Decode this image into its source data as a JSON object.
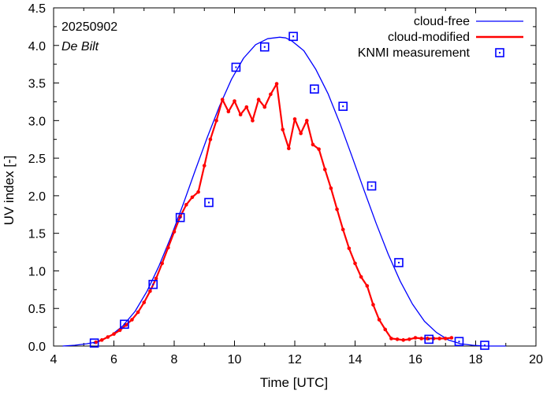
{
  "chart_data": {
    "type": "line",
    "annotations": {
      "date": "20250902",
      "station": "De Bilt"
    },
    "xlabel": "Time  [UTC]",
    "ylabel": "UV index  [-]",
    "xlim": [
      4,
      20
    ],
    "ylim": [
      0,
      4.5
    ],
    "xticks": [
      4,
      6,
      8,
      10,
      12,
      14,
      16,
      18,
      20
    ],
    "yticks": [
      0.0,
      0.5,
      1.0,
      1.5,
      2.0,
      2.5,
      3.0,
      3.5,
      4.0,
      4.5
    ],
    "xtick_labels": [
      "4",
      "6",
      "8",
      "10",
      "12",
      "14",
      "16",
      "18",
      "20"
    ],
    "ytick_labels": [
      "0.0",
      "0.5",
      "1.0",
      "1.5",
      "2.0",
      "2.5",
      "3.0",
      "3.5",
      "4.0",
      "4.5"
    ],
    "legend_position": "top-right",
    "series": [
      {
        "name": "cloud-free",
        "style": "line",
        "color": "#0000ff",
        "x": [
          4.3,
          4.7,
          5.1,
          5.5,
          5.9,
          6.3,
          6.7,
          7.1,
          7.5,
          7.9,
          8.3,
          8.7,
          9.1,
          9.5,
          9.9,
          10.3,
          10.7,
          11.1,
          11.5,
          11.7,
          11.9,
          12.3,
          12.7,
          13.1,
          13.5,
          13.9,
          14.3,
          14.7,
          15.1,
          15.5,
          15.9,
          16.3,
          16.7,
          17.1,
          17.5,
          17.9,
          18.3,
          18.7,
          19.0
        ],
        "y": [
          0.0,
          0.01,
          0.03,
          0.06,
          0.14,
          0.27,
          0.46,
          0.73,
          1.07,
          1.46,
          1.89,
          2.34,
          2.78,
          3.19,
          3.55,
          3.83,
          4.01,
          4.09,
          4.11,
          4.1,
          4.06,
          3.93,
          3.68,
          3.36,
          2.96,
          2.52,
          2.07,
          1.63,
          1.22,
          0.86,
          0.56,
          0.33,
          0.18,
          0.08,
          0.03,
          0.01,
          0.0,
          0.0,
          0.0
        ]
      },
      {
        "name": "cloud-modified",
        "style": "line-points",
        "color": "#ff0000",
        "x": [
          5.4,
          5.6,
          5.8,
          6.0,
          6.2,
          6.4,
          6.6,
          6.8,
          7.0,
          7.2,
          7.4,
          7.6,
          7.8,
          8.0,
          8.2,
          8.4,
          8.6,
          8.8,
          9.0,
          9.2,
          9.4,
          9.6,
          9.8,
          10.0,
          10.2,
          10.4,
          10.6,
          10.8,
          11.0,
          11.2,
          11.4,
          11.6,
          11.8,
          12.0,
          12.2,
          12.4,
          12.6,
          12.8,
          13.0,
          13.2,
          13.4,
          13.6,
          13.8,
          14.0,
          14.2,
          14.4,
          14.6,
          14.8,
          15.0,
          15.2,
          15.4,
          15.6,
          15.8,
          16.0,
          16.2,
          16.4,
          16.6,
          16.8,
          17.0,
          17.2
        ],
        "y": [
          0.05,
          0.08,
          0.12,
          0.16,
          0.21,
          0.28,
          0.35,
          0.45,
          0.58,
          0.73,
          0.9,
          1.1,
          1.31,
          1.52,
          1.72,
          1.88,
          1.98,
          2.05,
          2.4,
          2.75,
          3.0,
          3.28,
          3.12,
          3.26,
          3.08,
          3.18,
          3.0,
          3.28,
          3.18,
          3.35,
          3.49,
          2.88,
          2.63,
          3.02,
          2.83,
          3.0,
          2.68,
          2.62,
          2.35,
          2.1,
          1.82,
          1.55,
          1.3,
          1.1,
          0.92,
          0.8,
          0.55,
          0.35,
          0.22,
          0.1,
          0.09,
          0.08,
          0.09,
          0.11,
          0.1,
          0.1,
          0.1,
          0.1,
          0.1,
          0.11
        ]
      },
      {
        "name": "KNMI measurement",
        "style": "points",
        "color": "#0000ff",
        "x": [
          5.35,
          6.35,
          7.3,
          8.2,
          9.15,
          10.05,
          11.0,
          11.95,
          12.65,
          13.6,
          14.55,
          15.45,
          16.45,
          17.45,
          18.3
        ],
        "y": [
          0.04,
          0.29,
          0.82,
          1.71,
          1.91,
          3.71,
          3.98,
          4.12,
          3.42,
          3.19,
          2.13,
          1.11,
          0.09,
          0.06,
          0.01
        ]
      }
    ]
  }
}
